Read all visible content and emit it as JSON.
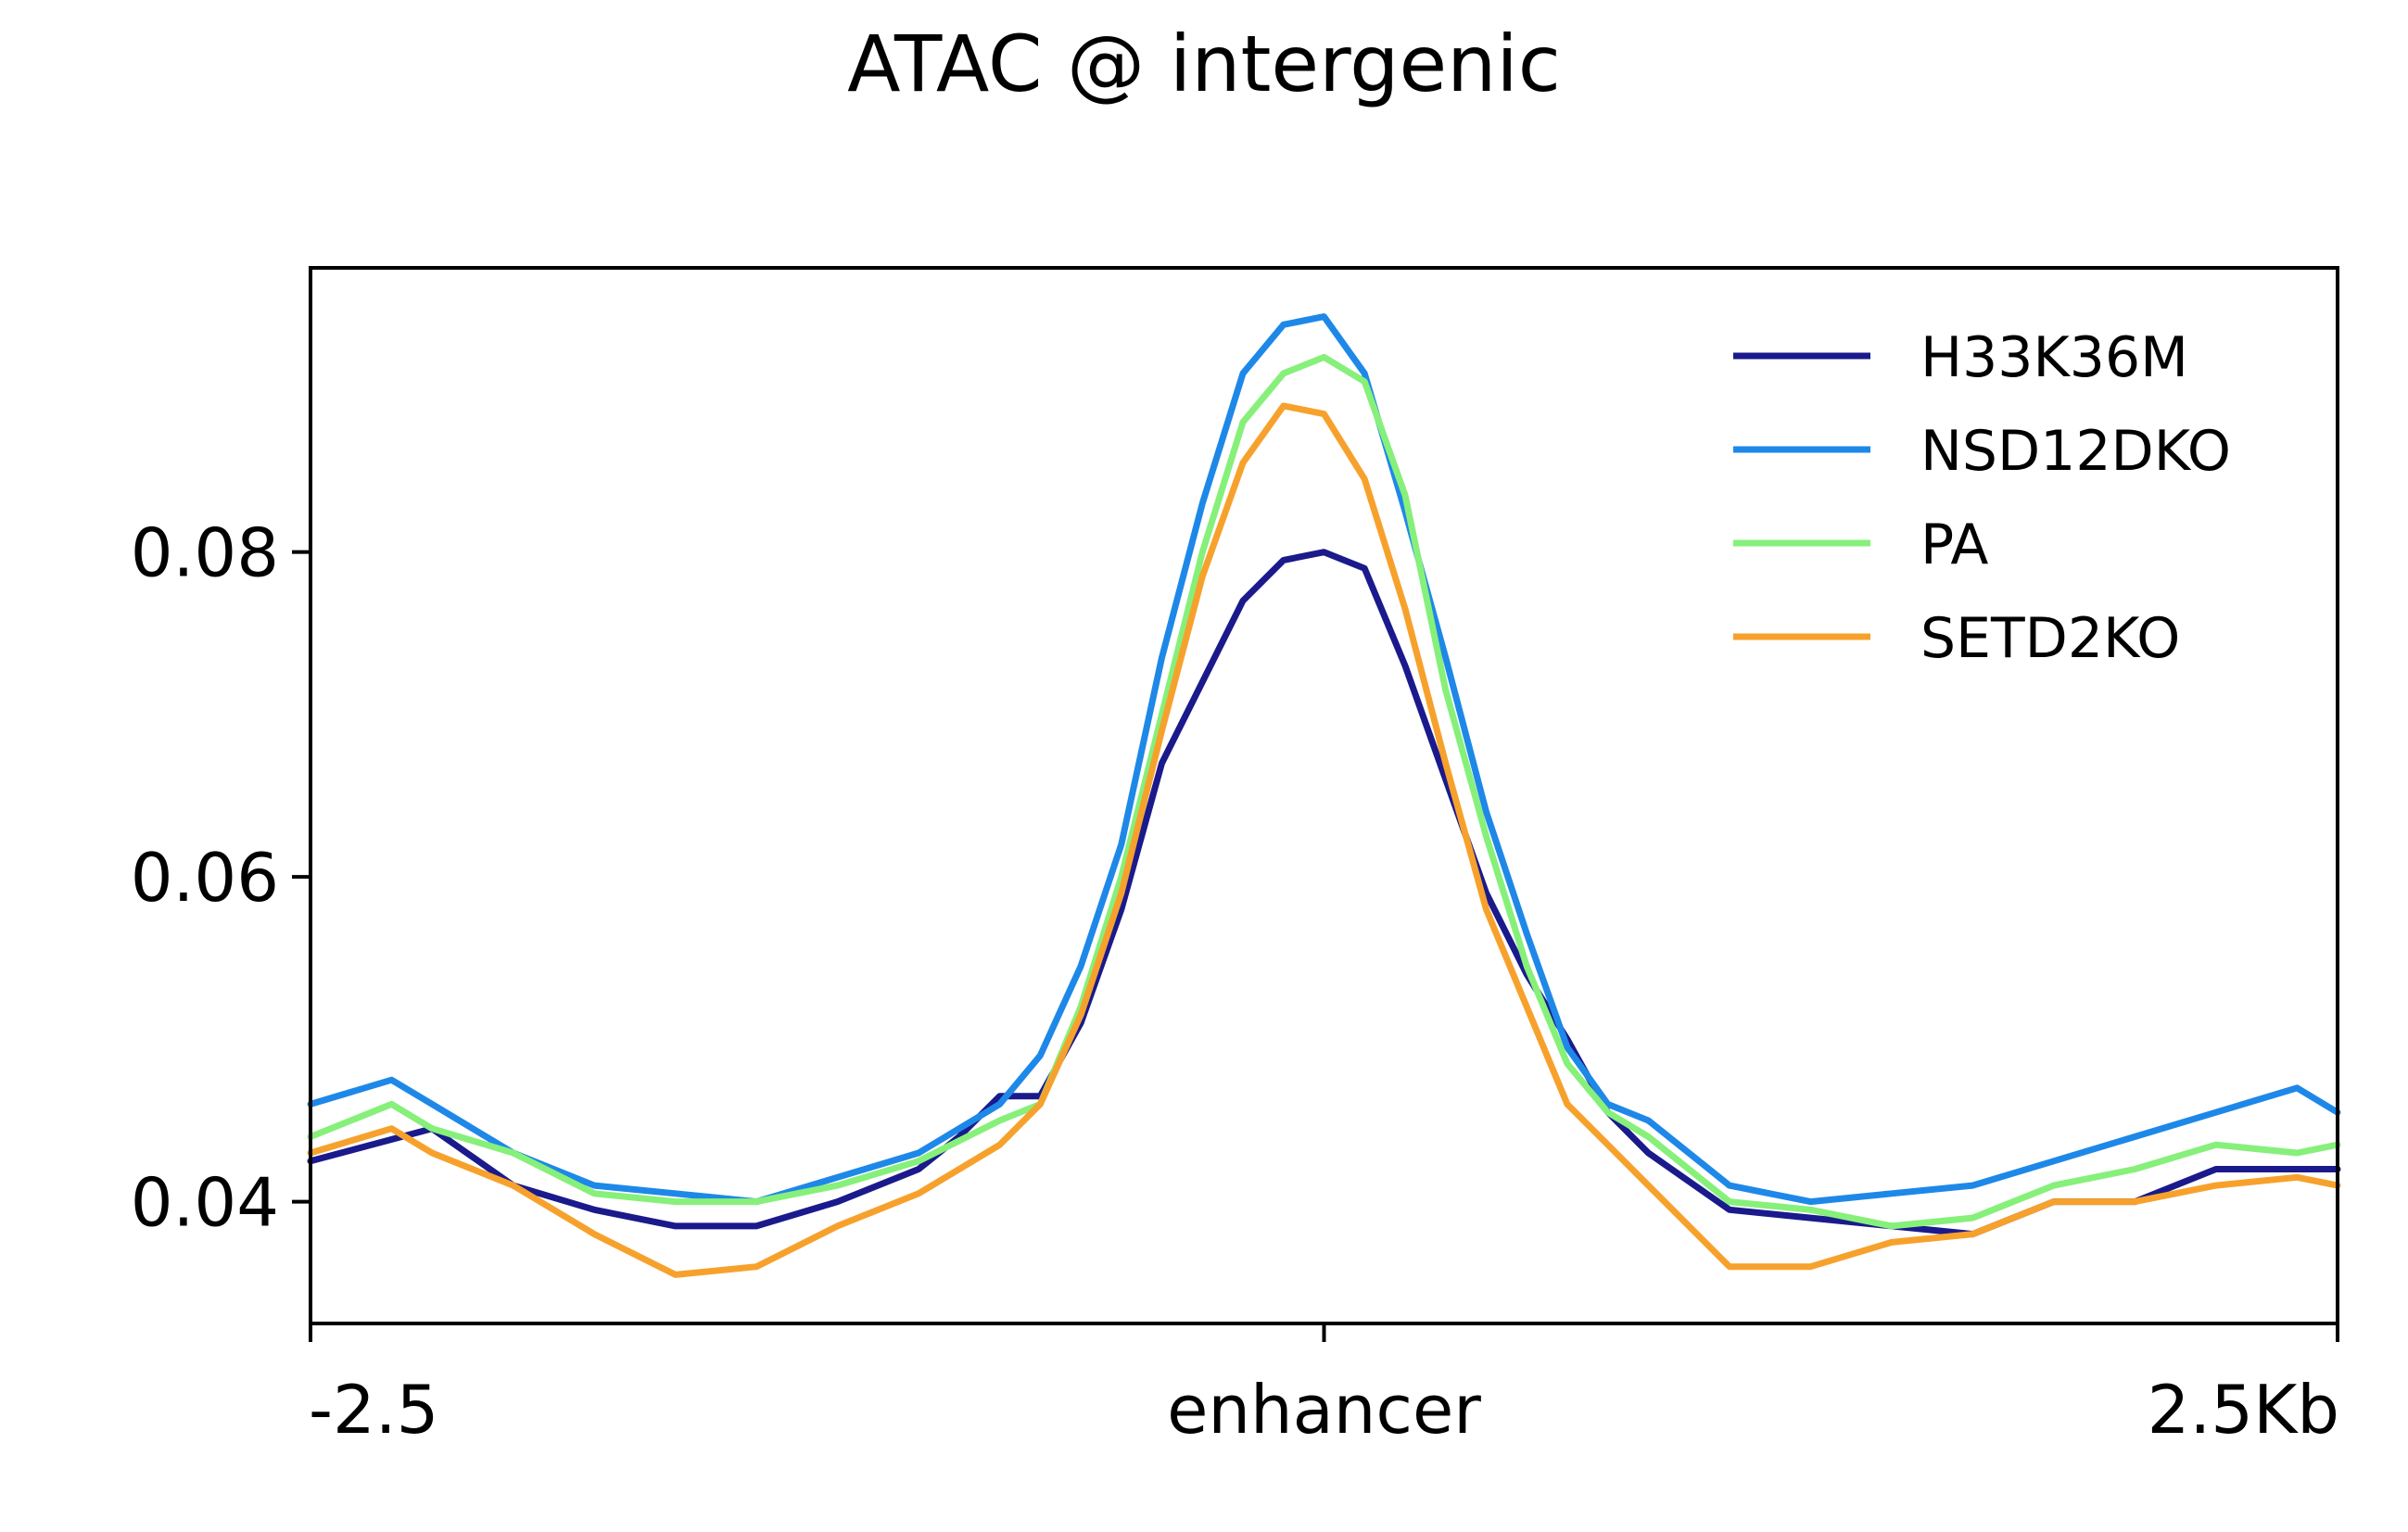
{
  "chart_data": {
    "type": "line",
    "title": "ATAC @ intergenic",
    "xlabel": "",
    "ylabel": "",
    "x_range": [
      -2.5,
      2.5
    ],
    "ylim": [
      0.0325,
      0.0975
    ],
    "x_ticks": [
      {
        "value": -2.5,
        "label": "-2.5"
      },
      {
        "value": 0,
        "label": "enhancer"
      },
      {
        "value": 2.5,
        "label": "2.5Kb"
      }
    ],
    "y_ticks": [
      {
        "value": 0.04,
        "label": "0.04"
      },
      {
        "value": 0.06,
        "label": "0.06"
      },
      {
        "value": 0.08,
        "label": "0.08"
      }
    ],
    "grid": false,
    "legend_position": "top-right",
    "series": [
      {
        "name": "H33K36M",
        "color": "#1a1a8c",
        "x": [
          -2.5,
          -2.2,
          -2.0,
          -1.8,
          -1.6,
          -1.4,
          -1.2,
          -1.0,
          -0.9,
          -0.8,
          -0.7,
          -0.6,
          -0.5,
          -0.4,
          -0.3,
          -0.2,
          -0.1,
          0.0,
          0.1,
          0.2,
          0.3,
          0.4,
          0.5,
          0.6,
          0.7,
          0.8,
          1.0,
          1.2,
          1.4,
          1.6,
          1.8,
          2.0,
          2.2,
          2.5
        ],
        "y": [
          0.0425,
          0.0445,
          0.041,
          0.0395,
          0.0385,
          0.0385,
          0.04,
          0.042,
          0.044,
          0.0465,
          0.0465,
          0.051,
          0.058,
          0.067,
          0.072,
          0.077,
          0.0795,
          0.08,
          0.079,
          0.073,
          0.066,
          0.059,
          0.054,
          0.05,
          0.0455,
          0.043,
          0.0395,
          0.039,
          0.0385,
          0.038,
          0.04,
          0.04,
          0.042,
          0.042
        ]
      },
      {
        "name": "NSD12DKO",
        "color": "#1e88e8",
        "x": [
          -2.5,
          -2.3,
          -2.2,
          -2.0,
          -1.8,
          -1.6,
          -1.4,
          -1.2,
          -1.0,
          -0.8,
          -0.7,
          -0.6,
          -0.5,
          -0.4,
          -0.3,
          -0.2,
          -0.1,
          0.0,
          0.1,
          0.2,
          0.3,
          0.4,
          0.5,
          0.6,
          0.7,
          0.8,
          1.0,
          1.2,
          1.4,
          1.6,
          1.8,
          2.0,
          2.2,
          2.4,
          2.5
        ],
        "y": [
          0.046,
          0.0475,
          0.046,
          0.043,
          0.041,
          0.0405,
          0.04,
          0.0415,
          0.043,
          0.046,
          0.049,
          0.0545,
          0.062,
          0.0735,
          0.083,
          0.091,
          0.094,
          0.0945,
          0.091,
          0.0825,
          0.0735,
          0.064,
          0.0565,
          0.0495,
          0.046,
          0.045,
          0.041,
          0.04,
          0.0405,
          0.041,
          0.0425,
          0.044,
          0.0455,
          0.047,
          0.0455
        ]
      },
      {
        "name": "PA",
        "color": "#86f07a",
        "x": [
          -2.5,
          -2.3,
          -2.2,
          -2.0,
          -1.8,
          -1.6,
          -1.4,
          -1.2,
          -1.0,
          -0.8,
          -0.7,
          -0.6,
          -0.5,
          -0.4,
          -0.3,
          -0.2,
          -0.1,
          0.0,
          0.1,
          0.2,
          0.3,
          0.4,
          0.5,
          0.6,
          0.7,
          0.8,
          1.0,
          1.2,
          1.4,
          1.6,
          1.8,
          2.0,
          2.2,
          2.4,
          2.5
        ],
        "y": [
          0.044,
          0.046,
          0.0445,
          0.043,
          0.0405,
          0.04,
          0.04,
          0.041,
          0.0425,
          0.045,
          0.046,
          0.052,
          0.06,
          0.07,
          0.08,
          0.088,
          0.091,
          0.092,
          0.0905,
          0.0835,
          0.0715,
          0.0625,
          0.0545,
          0.0485,
          0.0455,
          0.044,
          0.04,
          0.0395,
          0.0385,
          0.039,
          0.041,
          0.042,
          0.0435,
          0.043,
          0.0435
        ]
      },
      {
        "name": "SETD2KO",
        "color": "#f7a12d",
        "x": [
          -2.5,
          -2.3,
          -2.2,
          -2.0,
          -1.8,
          -1.6,
          -1.4,
          -1.2,
          -1.0,
          -0.8,
          -0.7,
          -0.6,
          -0.5,
          -0.4,
          -0.3,
          -0.2,
          -0.1,
          0.0,
          0.1,
          0.2,
          0.3,
          0.4,
          0.5,
          0.6,
          0.7,
          0.8,
          1.0,
          1.2,
          1.4,
          1.6,
          1.8,
          2.0,
          2.2,
          2.4,
          2.5
        ],
        "y": [
          0.043,
          0.0445,
          0.043,
          0.041,
          0.038,
          0.0355,
          0.036,
          0.0385,
          0.0405,
          0.0435,
          0.046,
          0.0515,
          0.059,
          0.069,
          0.0785,
          0.0855,
          0.089,
          0.0885,
          0.0845,
          0.0765,
          0.067,
          0.058,
          0.052,
          0.046,
          0.0435,
          0.041,
          0.036,
          0.036,
          0.0375,
          0.038,
          0.04,
          0.04,
          0.041,
          0.0415,
          0.041
        ]
      }
    ]
  }
}
